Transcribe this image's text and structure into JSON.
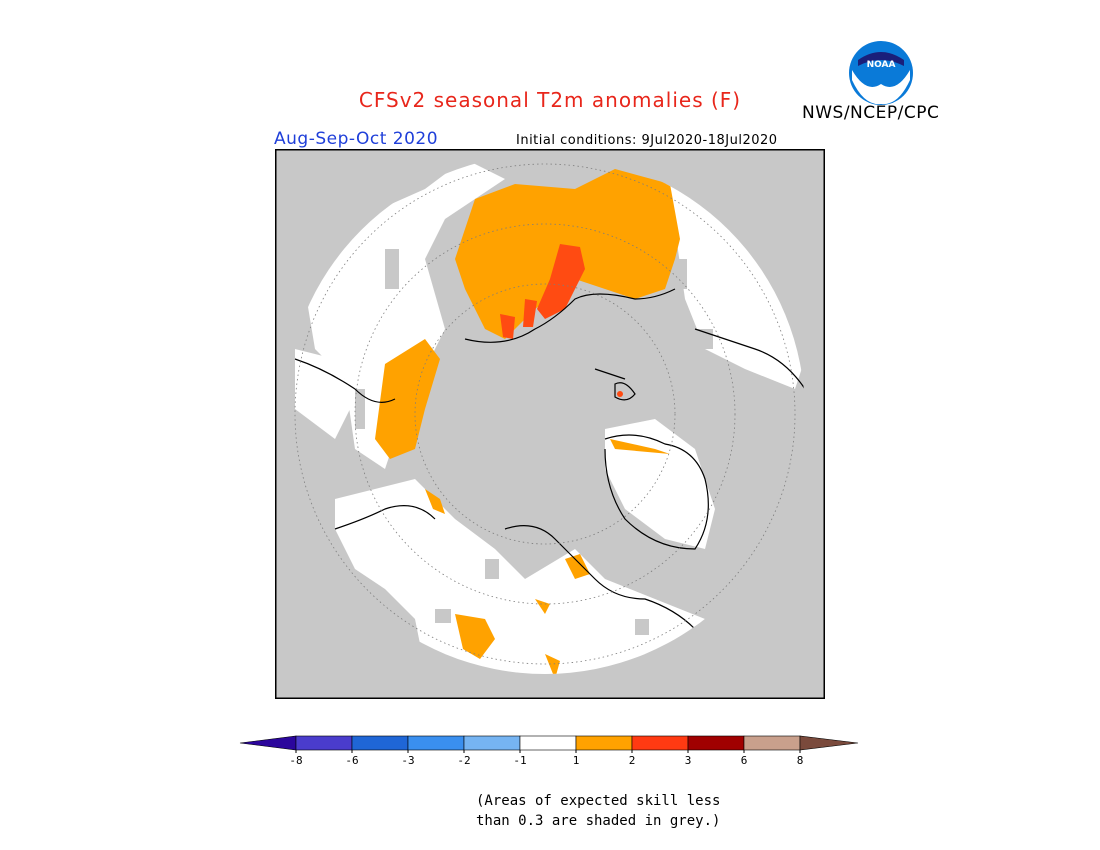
{
  "title": "CFSv2 seasonal T2m anomalies (F)",
  "period": "Aug-Sep-Oct 2020",
  "initial_conditions": "Initial conditions: 9Jul2020-18Jul2020",
  "agency": "NWS/NCEP/CPC",
  "logo_text": "NOAA",
  "note_line1": "(Areas of expected skill less",
  "note_line2": "than 0.3 are shaded in grey.)",
  "colors": {
    "title": "#e8261b",
    "period": "#1f3fd9",
    "skill_mask_grey": "#c8c8c8",
    "near_normal_white": "#ffffff",
    "warm_1_2": "#ffa200",
    "warm_2_3": "#ff4b12"
  },
  "legend": {
    "bins": [
      {
        "color": "#2b069c"
      },
      {
        "color": "#4a3ccc"
      },
      {
        "color": "#1f66d6"
      },
      {
        "color": "#3a8fef"
      },
      {
        "color": "#76b4f2"
      },
      {
        "color": "#ffffff"
      },
      {
        "color": "#ffa200"
      },
      {
        "color": "#ff3a12"
      },
      {
        "color": "#a00000"
      },
      {
        "color": "#c9a08c"
      },
      {
        "color": "#7a4a3c"
      }
    ],
    "ticks": [
      "-8",
      "-6",
      "-3",
      "-2",
      "-1",
      "1",
      "2",
      "3",
      "6",
      "8"
    ]
  }
}
